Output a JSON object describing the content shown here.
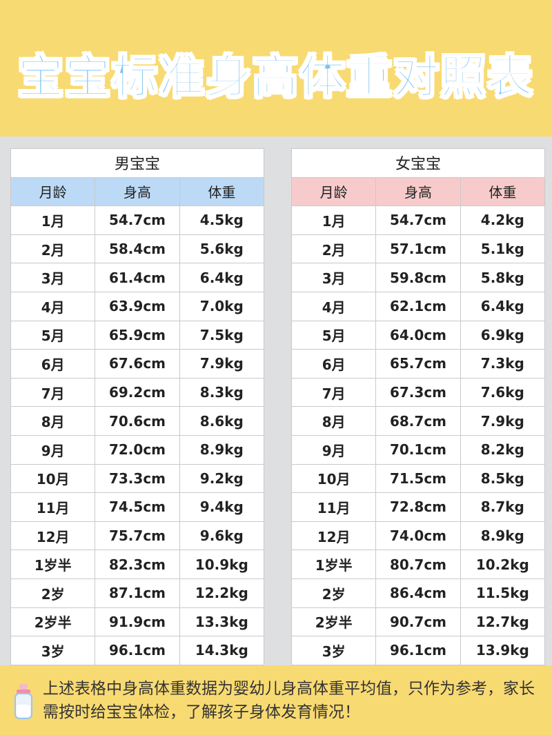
{
  "title": "宝宝标准身高体重对照表",
  "tables": [
    {
      "title": "男宝宝",
      "columns": [
        "月龄",
        "身高",
        "体重"
      ],
      "rows": [
        [
          "1月",
          "54.7cm",
          "4.5kg"
        ],
        [
          "2月",
          "58.4cm",
          "5.6kg"
        ],
        [
          "3月",
          "61.4cm",
          "6.4kg"
        ],
        [
          "4月",
          "63.9cm",
          "7.0kg"
        ],
        [
          "5月",
          "65.9cm",
          "7.5kg"
        ],
        [
          "6月",
          "67.6cm",
          "7.9kg"
        ],
        [
          "7月",
          "69.2cm",
          "8.3kg"
        ],
        [
          "8月",
          "70.6cm",
          "8.6kg"
        ],
        [
          "9月",
          "72.0cm",
          "8.9kg"
        ],
        [
          "10月",
          "73.3cm",
          "9.2kg"
        ],
        [
          "11月",
          "74.5cm",
          "9.4kg"
        ],
        [
          "12月",
          "75.7cm",
          "9.6kg"
        ],
        [
          "1岁半",
          "82.3cm",
          "10.9kg"
        ],
        [
          "2岁",
          "87.1cm",
          "12.2kg"
        ],
        [
          "2岁半",
          "91.9cm",
          "13.3kg"
        ],
        [
          "3岁",
          "96.1cm",
          "14.3kg"
        ]
      ]
    },
    {
      "title": "女宝宝",
      "columns": [
        "月龄",
        "身高",
        "体重"
      ],
      "rows": [
        [
          "1月",
          "54.7cm",
          "4.2kg"
        ],
        [
          "2月",
          "57.1cm",
          "5.1kg"
        ],
        [
          "3月",
          "59.8cm",
          "5.8kg"
        ],
        [
          "4月",
          "62.1cm",
          "6.4kg"
        ],
        [
          "5月",
          "64.0cm",
          "6.9kg"
        ],
        [
          "6月",
          "65.7cm",
          "7.3kg"
        ],
        [
          "7月",
          "67.3cm",
          "7.6kg"
        ],
        [
          "8月",
          "68.7cm",
          "7.9kg"
        ],
        [
          "9月",
          "70.1cm",
          "8.2kg"
        ],
        [
          "10月",
          "71.5cm",
          "8.5kg"
        ],
        [
          "11月",
          "72.8cm",
          "8.7kg"
        ],
        [
          "12月",
          "74.0cm",
          "8.9kg"
        ],
        [
          "1岁半",
          "80.7cm",
          "10.2kg"
        ],
        [
          "2岁",
          "86.4cm",
          "11.5kg"
        ],
        [
          "2岁半",
          "90.7cm",
          "12.7kg"
        ],
        [
          "3岁",
          "96.1cm",
          "13.9kg"
        ]
      ]
    }
  ],
  "note": "上述表格中身高体重数据为婴幼儿身高体重平均值，只作为参考，家长需按时给宝宝体检，了解孩子身体发育情况！"
}
